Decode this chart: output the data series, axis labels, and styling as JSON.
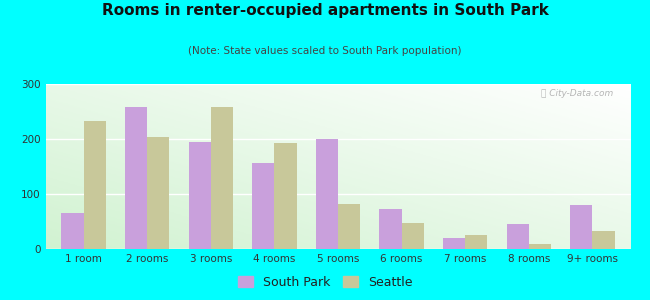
{
  "title": "Rooms in renter-occupied apartments in South Park",
  "subtitle": "(Note: State values scaled to South Park population)",
  "categories": [
    "1 room",
    "2 rooms",
    "3 rooms",
    "4 rooms",
    "5 rooms",
    "6 rooms",
    "7 rooms",
    "8 rooms",
    "9+ rooms"
  ],
  "south_park": [
    65,
    258,
    195,
    157,
    200,
    72,
    20,
    45,
    80
  ],
  "seattle": [
    233,
    203,
    258,
    193,
    82,
    48,
    25,
    10,
    32
  ],
  "south_park_color": "#c9a0dc",
  "seattle_color": "#c8c89a",
  "background_outer": "#00ffff",
  "ylim": [
    0,
    300
  ],
  "yticks": [
    0,
    100,
    200,
    300
  ],
  "bar_width": 0.35,
  "title_fontsize": 11,
  "subtitle_fontsize": 7.5,
  "legend_fontsize": 9,
  "tick_fontsize": 7.5
}
